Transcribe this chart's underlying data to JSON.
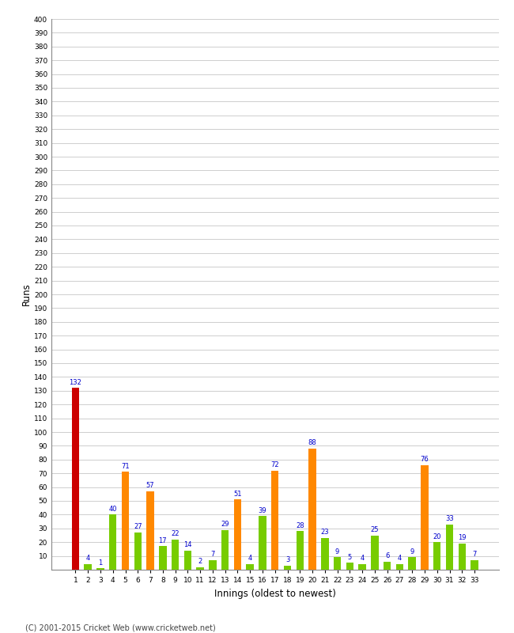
{
  "xlabel": "Innings (oldest to newest)",
  "ylabel": "Runs",
  "ylim": [
    0,
    400
  ],
  "yticks": [
    10,
    20,
    30,
    40,
    50,
    60,
    70,
    80,
    90,
    100,
    110,
    120,
    130,
    140,
    150,
    160,
    170,
    180,
    190,
    200,
    210,
    220,
    230,
    240,
    250,
    260,
    270,
    280,
    290,
    300,
    310,
    320,
    330,
    340,
    350,
    360,
    370,
    380,
    390,
    400
  ],
  "innings": [
    1,
    2,
    3,
    4,
    5,
    6,
    7,
    8,
    9,
    10,
    11,
    12,
    13,
    14,
    15,
    16,
    17,
    18,
    19,
    20,
    21,
    22,
    23,
    24,
    25,
    26,
    27,
    28,
    29,
    30,
    31,
    32,
    33
  ],
  "values": [
    132,
    4,
    1,
    40,
    71,
    27,
    57,
    17,
    22,
    14,
    2,
    7,
    29,
    51,
    4,
    39,
    72,
    3,
    28,
    88,
    23,
    9,
    5,
    4,
    25,
    6,
    4,
    9,
    76,
    20,
    33,
    19,
    7
  ],
  "colors": [
    "#cc0000",
    "#77cc00",
    "#77cc00",
    "#77cc00",
    "#ff8800",
    "#77cc00",
    "#ff8800",
    "#77cc00",
    "#77cc00",
    "#77cc00",
    "#77cc00",
    "#77cc00",
    "#77cc00",
    "#ff8800",
    "#77cc00",
    "#77cc00",
    "#ff8800",
    "#77cc00",
    "#77cc00",
    "#ff8800",
    "#77cc00",
    "#77cc00",
    "#77cc00",
    "#77cc00",
    "#77cc00",
    "#77cc00",
    "#77cc00",
    "#77cc00",
    "#ff8800",
    "#77cc00",
    "#77cc00",
    "#77cc00",
    "#77cc00"
  ],
  "label_color": "#0000cc",
  "bg_color": "#ffffff",
  "grid_color": "#bbbbbb",
  "footer": "(C) 2001-2015 Cricket Web (www.cricketweb.net)",
  "bar_width": 0.6
}
